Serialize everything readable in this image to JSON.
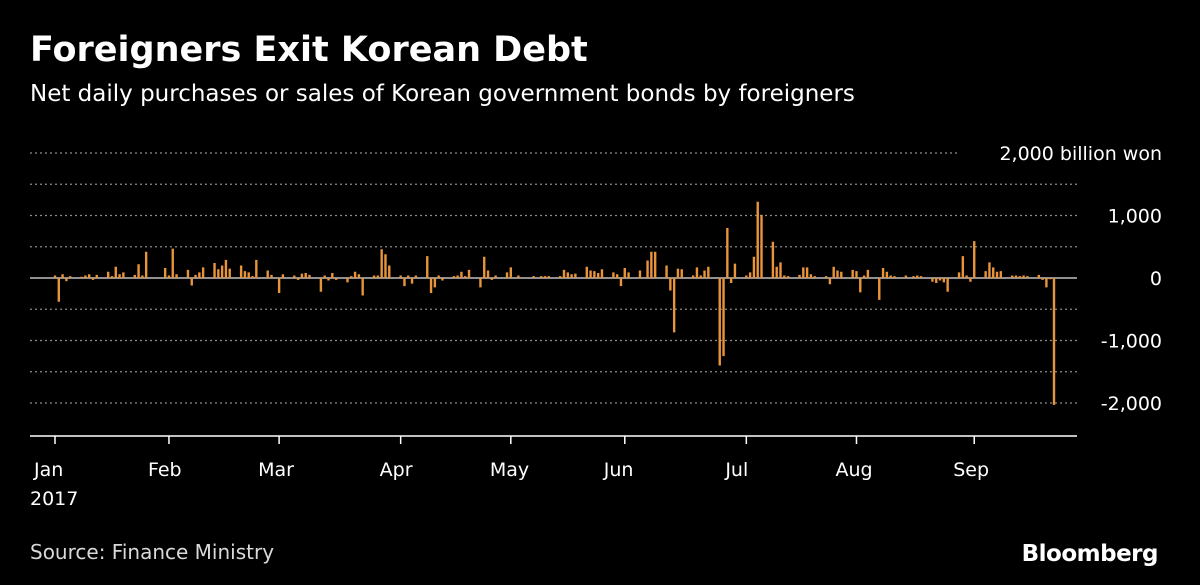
{
  "title": "Foreigners Exit Korean Debt",
  "subtitle": "Net daily purchases or sales of Korean government bonds by foreigners",
  "source": "Source: Finance Ministry",
  "brand": "Bloomberg",
  "colors": {
    "background": "#000000",
    "bar": "#e8943a",
    "gridline": "#8c8c8c",
    "text": "#ffffff"
  },
  "chart_data": {
    "type": "bar",
    "title": "Foreigners Exit Korean Debt",
    "subtitle": "Net daily purchases or sales of Korean government bonds by foreigners",
    "unit_label": "2,000 billion won",
    "ylim": [
      -2500,
      2000
    ],
    "y_ticks": [
      {
        "value": 2000,
        "label": "2,000 billion won"
      },
      {
        "value": 1000,
        "label": "1,000"
      },
      {
        "value": 0,
        "label": "0"
      },
      {
        "value": -1000,
        "label": "-1,000"
      },
      {
        "value": -2000,
        "label": "-2,000"
      }
    ],
    "x_ticks": [
      {
        "date": "2017-01-02",
        "label": "Jan",
        "sublabel": "2017"
      },
      {
        "date": "2017-02-01",
        "label": "Feb"
      },
      {
        "date": "2017-03-02",
        "label": "Mar"
      },
      {
        "date": "2017-04-03",
        "label": "Apr"
      },
      {
        "date": "2017-05-02",
        "label": "May"
      },
      {
        "date": "2017-06-01",
        "label": "Jun"
      },
      {
        "date": "2017-07-03",
        "label": "Jul"
      },
      {
        "date": "2017-08-01",
        "label": "Aug"
      },
      {
        "date": "2017-09-01",
        "label": "Sep"
      }
    ],
    "grid": true,
    "series": [
      {
        "points": [
          [
            "2017-01-02",
            40
          ],
          [
            "2017-01-03",
            -380
          ],
          [
            "2017-01-04",
            60
          ],
          [
            "2017-01-05",
            -50
          ],
          [
            "2017-01-06",
            30
          ],
          [
            "2017-01-09",
            20
          ],
          [
            "2017-01-10",
            40
          ],
          [
            "2017-01-11",
            60
          ],
          [
            "2017-01-12",
            -30
          ],
          [
            "2017-01-13",
            50
          ],
          [
            "2017-01-16",
            100
          ],
          [
            "2017-01-17",
            30
          ],
          [
            "2017-01-18",
            180
          ],
          [
            "2017-01-19",
            60
          ],
          [
            "2017-01-20",
            90
          ],
          [
            "2017-01-23",
            50
          ],
          [
            "2017-01-24",
            220
          ],
          [
            "2017-01-25",
            40
          ],
          [
            "2017-01-26",
            420
          ],
          [
            "2017-01-31",
            160
          ],
          [
            "2017-02-01",
            40
          ],
          [
            "2017-02-02",
            470
          ],
          [
            "2017-02-03",
            60
          ],
          [
            "2017-02-06",
            130
          ],
          [
            "2017-02-07",
            -120
          ],
          [
            "2017-02-08",
            50
          ],
          [
            "2017-02-09",
            90
          ],
          [
            "2017-02-10",
            170
          ],
          [
            "2017-02-13",
            240
          ],
          [
            "2017-02-14",
            140
          ],
          [
            "2017-02-15",
            200
          ],
          [
            "2017-02-16",
            290
          ],
          [
            "2017-02-17",
            150
          ],
          [
            "2017-02-20",
            200
          ],
          [
            "2017-02-21",
            110
          ],
          [
            "2017-02-22",
            90
          ],
          [
            "2017-02-23",
            30
          ],
          [
            "2017-02-24",
            290
          ],
          [
            "2017-02-27",
            120
          ],
          [
            "2017-02-28",
            50
          ],
          [
            "2017-03-02",
            -240
          ],
          [
            "2017-03-03",
            60
          ],
          [
            "2017-03-06",
            40
          ],
          [
            "2017-03-07",
            -30
          ],
          [
            "2017-03-08",
            70
          ],
          [
            "2017-03-09",
            80
          ],
          [
            "2017-03-10",
            50
          ],
          [
            "2017-03-13",
            -220
          ],
          [
            "2017-03-14",
            40
          ],
          [
            "2017-03-15",
            -40
          ],
          [
            "2017-03-16",
            80
          ],
          [
            "2017-03-17",
            -30
          ],
          [
            "2017-03-20",
            -70
          ],
          [
            "2017-03-21",
            30
          ],
          [
            "2017-03-22",
            100
          ],
          [
            "2017-03-23",
            60
          ],
          [
            "2017-03-24",
            -280
          ],
          [
            "2017-03-27",
            40
          ],
          [
            "2017-03-28",
            40
          ],
          [
            "2017-03-29",
            460
          ],
          [
            "2017-03-30",
            380
          ],
          [
            "2017-03-31",
            200
          ],
          [
            "2017-04-03",
            40
          ],
          [
            "2017-04-04",
            -130
          ],
          [
            "2017-04-05",
            40
          ],
          [
            "2017-04-06",
            -90
          ],
          [
            "2017-04-07",
            40
          ],
          [
            "2017-04-10",
            350
          ],
          [
            "2017-04-11",
            -240
          ],
          [
            "2017-04-12",
            -150
          ],
          [
            "2017-04-13",
            40
          ],
          [
            "2017-04-14",
            -40
          ],
          [
            "2017-04-17",
            30
          ],
          [
            "2017-04-18",
            40
          ],
          [
            "2017-04-19",
            100
          ],
          [
            "2017-04-20",
            30
          ],
          [
            "2017-04-21",
            130
          ],
          [
            "2017-04-24",
            -150
          ],
          [
            "2017-04-25",
            340
          ],
          [
            "2017-04-26",
            120
          ],
          [
            "2017-04-27",
            -30
          ],
          [
            "2017-04-28",
            40
          ],
          [
            "2017-05-01",
            90
          ],
          [
            "2017-05-02",
            170
          ],
          [
            "2017-05-04",
            40
          ],
          [
            "2017-05-08",
            30
          ],
          [
            "2017-05-10",
            30
          ],
          [
            "2017-05-11",
            30
          ],
          [
            "2017-05-12",
            30
          ],
          [
            "2017-05-15",
            30
          ],
          [
            "2017-05-16",
            130
          ],
          [
            "2017-05-17",
            90
          ],
          [
            "2017-05-18",
            60
          ],
          [
            "2017-05-19",
            70
          ],
          [
            "2017-05-22",
            180
          ],
          [
            "2017-05-23",
            120
          ],
          [
            "2017-05-24",
            110
          ],
          [
            "2017-05-25",
            80
          ],
          [
            "2017-05-26",
            140
          ],
          [
            "2017-05-29",
            90
          ],
          [
            "2017-05-30",
            60
          ],
          [
            "2017-05-31",
            -130
          ],
          [
            "2017-06-01",
            160
          ],
          [
            "2017-06-02",
            90
          ],
          [
            "2017-06-05",
            120
          ],
          [
            "2017-06-07",
            280
          ],
          [
            "2017-06-08",
            420
          ],
          [
            "2017-06-09",
            420
          ],
          [
            "2017-06-12",
            200
          ],
          [
            "2017-06-13",
            -200
          ],
          [
            "2017-06-14",
            -870
          ],
          [
            "2017-06-15",
            150
          ],
          [
            "2017-06-16",
            140
          ],
          [
            "2017-06-19",
            40
          ],
          [
            "2017-06-20",
            170
          ],
          [
            "2017-06-21",
            40
          ],
          [
            "2017-06-22",
            120
          ],
          [
            "2017-06-23",
            180
          ],
          [
            "2017-06-26",
            -1400
          ],
          [
            "2017-06-27",
            -1250
          ],
          [
            "2017-06-28",
            800
          ],
          [
            "2017-06-29",
            -80
          ],
          [
            "2017-06-30",
            230
          ],
          [
            "2017-07-03",
            40
          ],
          [
            "2017-07-04",
            90
          ],
          [
            "2017-07-05",
            340
          ],
          [
            "2017-07-06",
            1220
          ],
          [
            "2017-07-07",
            1010
          ],
          [
            "2017-07-10",
            580
          ],
          [
            "2017-07-11",
            180
          ],
          [
            "2017-07-12",
            250
          ],
          [
            "2017-07-13",
            40
          ],
          [
            "2017-07-14",
            30
          ],
          [
            "2017-07-17",
            50
          ],
          [
            "2017-07-18",
            170
          ],
          [
            "2017-07-19",
            170
          ],
          [
            "2017-07-20",
            60
          ],
          [
            "2017-07-21",
            30
          ],
          [
            "2017-07-24",
            30
          ],
          [
            "2017-07-25",
            -100
          ],
          [
            "2017-07-26",
            180
          ],
          [
            "2017-07-27",
            120
          ],
          [
            "2017-07-28",
            100
          ],
          [
            "2017-07-31",
            130
          ],
          [
            "2017-08-01",
            110
          ],
          [
            "2017-08-02",
            -230
          ],
          [
            "2017-08-03",
            40
          ],
          [
            "2017-08-04",
            130
          ],
          [
            "2017-08-07",
            -350
          ],
          [
            "2017-08-08",
            160
          ],
          [
            "2017-08-09",
            100
          ],
          [
            "2017-08-10",
            40
          ],
          [
            "2017-08-11",
            30
          ],
          [
            "2017-08-14",
            40
          ],
          [
            "2017-08-16",
            30
          ],
          [
            "2017-08-17",
            40
          ],
          [
            "2017-08-18",
            30
          ],
          [
            "2017-08-21",
            -60
          ],
          [
            "2017-08-22",
            -80
          ],
          [
            "2017-08-23",
            -40
          ],
          [
            "2017-08-24",
            -70
          ],
          [
            "2017-08-25",
            -220
          ],
          [
            "2017-08-28",
            90
          ],
          [
            "2017-08-29",
            350
          ],
          [
            "2017-08-30",
            40
          ],
          [
            "2017-08-31",
            -60
          ],
          [
            "2017-09-01",
            590
          ],
          [
            "2017-09-04",
            110
          ],
          [
            "2017-09-05",
            250
          ],
          [
            "2017-09-06",
            170
          ],
          [
            "2017-09-07",
            100
          ],
          [
            "2017-09-08",
            110
          ],
          [
            "2017-09-11",
            40
          ],
          [
            "2017-09-12",
            40
          ],
          [
            "2017-09-13",
            30
          ],
          [
            "2017-09-14",
            40
          ],
          [
            "2017-09-15",
            30
          ],
          [
            "2017-09-18",
            50
          ],
          [
            "2017-09-19",
            -30
          ],
          [
            "2017-09-20",
            -150
          ],
          [
            "2017-09-21",
            -20
          ],
          [
            "2017-09-22",
            -2030
          ]
        ]
      }
    ]
  }
}
